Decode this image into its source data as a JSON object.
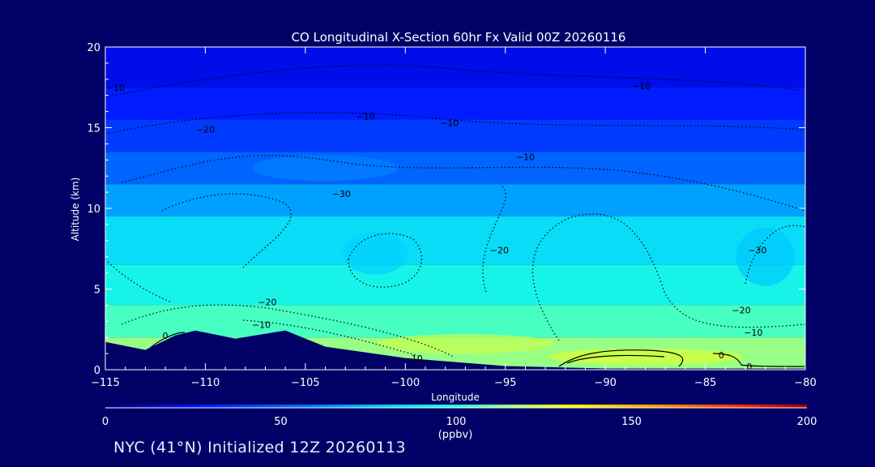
{
  "chart_data": {
    "type": "heatmap",
    "title": "CO Longitudinal X-Section 60hr  Fx Valid 00Z 20260116",
    "xlabel": "Longitude",
    "ylabel": "Altitude (km)",
    "xlim": [
      -115,
      -80
    ],
    "ylim": [
      0,
      20
    ],
    "x_ticks": [
      -115,
      -110,
      -105,
      -100,
      -95,
      -90,
      -85,
      -80
    ],
    "x_tick_labels": [
      "−115",
      "−110",
      "−105",
      "−100",
      "−95",
      "−90",
      "−85",
      "−80"
    ],
    "y_ticks": [
      0,
      5,
      10,
      15,
      20
    ],
    "y_tick_labels": [
      "0",
      "5",
      "10",
      "15",
      "20"
    ],
    "colorbar": {
      "min": 0,
      "max": 200,
      "ticks": [
        0,
        50,
        100,
        150,
        200
      ],
      "tick_labels": [
        "0",
        "50",
        "100",
        "150",
        "200"
      ],
      "unit": "(ppbv)"
    },
    "fill_bands_ppbv": [
      {
        "alt_bottom": 17.5,
        "alt_top": 20,
        "value": 20
      },
      {
        "alt_bottom": 15.5,
        "alt_top": 17.5,
        "value": 28
      },
      {
        "alt_bottom": 13.5,
        "alt_top": 15.5,
        "value": 38
      },
      {
        "alt_bottom": 11.5,
        "alt_top": 13.5,
        "value": 52
      },
      {
        "alt_bottom": 9.5,
        "alt_top": 11.5,
        "value": 68
      },
      {
        "alt_bottom": 6.5,
        "alt_top": 9.5,
        "value": 85
      },
      {
        "alt_bottom": 4.0,
        "alt_top": 6.5,
        "value": 95
      },
      {
        "alt_bottom": 2.0,
        "alt_top": 4.0,
        "value": 105
      },
      {
        "alt_bottom": 0.0,
        "alt_top": 2.0,
        "value": 115
      }
    ],
    "terrain_km": [
      {
        "lon": -115,
        "alt": 1.7
      },
      {
        "lon": -113,
        "alt": 1.2
      },
      {
        "lon": -111.5,
        "alt": 2.1
      },
      {
        "lon": -110.5,
        "alt": 2.4
      },
      {
        "lon": -108.5,
        "alt": 1.9
      },
      {
        "lon": -106,
        "alt": 2.4
      },
      {
        "lon": -104,
        "alt": 1.4
      },
      {
        "lon": -100,
        "alt": 0.7
      },
      {
        "lon": -95,
        "alt": 0.2
      },
      {
        "lon": -90,
        "alt": 0.05
      },
      {
        "lon": -80,
        "alt": 0.05
      }
    ],
    "contour_labels": [
      {
        "text": "−10",
        "lon": -114.5,
        "alt": 17.5
      },
      {
        "text": "−10",
        "lon": -102,
        "alt": 15.7
      },
      {
        "text": "−10",
        "lon": -97.8,
        "alt": 15.3
      },
      {
        "text": "−10",
        "lon": -88.2,
        "alt": 17.6
      },
      {
        "text": "−10",
        "lon": -94.0,
        "alt": 13.2
      },
      {
        "text": "−20",
        "lon": -110.0,
        "alt": 14.9
      },
      {
        "text": "−30",
        "lon": -103.2,
        "alt": 10.9
      },
      {
        "text": "−20",
        "lon": -95.3,
        "alt": 7.4
      },
      {
        "text": "−30",
        "lon": -82.4,
        "alt": 7.4
      },
      {
        "text": "−20",
        "lon": -106.9,
        "alt": 4.2
      },
      {
        "text": "−10",
        "lon": -107.2,
        "alt": 2.8
      },
      {
        "text": "−20",
        "lon": -83.2,
        "alt": 3.7
      },
      {
        "text": "−10",
        "lon": -82.6,
        "alt": 2.3
      },
      {
        "text": "−10",
        "lon": -99.6,
        "alt": 0.7
      },
      {
        "text": "0",
        "lon": -112.0,
        "alt": 2.1
      },
      {
        "text": "0",
        "lon": -84.2,
        "alt": 0.9
      },
      {
        "text": "0",
        "lon": -82.8,
        "alt": 0.2
      }
    ]
  },
  "footer": "NYC (41°N) Initialized 12Z 20260113",
  "colors": {
    "background": "#000066",
    "terrain": "#000066",
    "axes": "#ffffff",
    "positive_contour": "#000000"
  }
}
